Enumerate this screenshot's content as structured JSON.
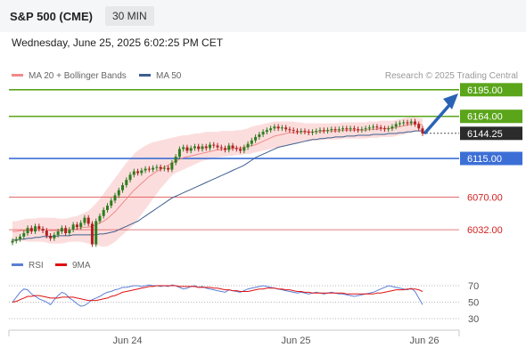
{
  "header": {
    "symbol": "S&P 500 (CME)",
    "timeframe": "30 MIN"
  },
  "datetime": "Wednesday, June 25, 2025 6:02:25 PM CET",
  "legend": {
    "bb_label": "MA 20 + Bollinger Bands",
    "ma50_label": "MA 50",
    "bb_color": "#f08a8a",
    "ma50_color": "#3d5f8f"
  },
  "research_text": "Research © 2025 Trading Central",
  "levels": [
    {
      "value": "6195.00",
      "kind": "resistance",
      "color": "#5aa51a",
      "fill": "#5aa51a",
      "text_color": "#ffffff"
    },
    {
      "value": "6164.00",
      "kind": "resistance",
      "color": "#5aa51a",
      "fill": "#5aa51a",
      "text_color": "#ffffff"
    },
    {
      "value": "6144.25",
      "kind": "last",
      "color": "#333333",
      "fill": "#2b2b2b",
      "text_color": "#ffffff"
    },
    {
      "value": "6115.00",
      "kind": "pivot",
      "color": "#3c6fd6",
      "fill": "#3c6fd6",
      "text_color": "#ffffff"
    },
    {
      "value": "6070.00",
      "kind": "support",
      "color": "#e05555",
      "fill": "none",
      "text_color": "#d42020"
    },
    {
      "value": "6032.00",
      "kind": "support",
      "color": "#e05555",
      "fill": "none",
      "text_color": "#d42020"
    }
  ],
  "rsi": {
    "label": "RSI",
    "ma_label": "9MA",
    "rsi_color": "#5b7fd6",
    "ma_color": "#e01010",
    "ticks": [
      "70",
      "50",
      "30"
    ]
  },
  "x_ticks": [
    "Jun 24",
    "Jun 25",
    "Jun 26"
  ],
  "chart_data": {
    "type": "candlestick",
    "y_levels": [
      6195.0,
      6164.0,
      6144.25,
      6115.0,
      6070.0,
      6032.0
    ],
    "close_series": [
      6019,
      6021,
      6024,
      6028,
      6034,
      6030,
      6036,
      6033,
      6031,
      6025,
      6022,
      6026,
      6030,
      6034,
      6028,
      6032,
      6038,
      6035,
      6040,
      6046,
      6039,
      6015,
      6042,
      6048,
      6055,
      6060,
      6066,
      6072,
      6078,
      6084,
      6090,
      6096,
      6100,
      6098,
      6101,
      6103,
      6102,
      6104,
      6105,
      6103,
      6104,
      6102,
      6110,
      6117,
      6126,
      6128,
      6124,
      6127,
      6129,
      6126,
      6129,
      6127,
      6131,
      6130,
      6128,
      6127,
      6125,
      6130,
      6127,
      6126,
      6124,
      6128,
      6132,
      6136,
      6140,
      6143,
      6146,
      6148,
      6150,
      6152,
      6150,
      6151,
      6149,
      6148,
      6147,
      6146,
      6147,
      6146,
      6145,
      6146,
      6147,
      6148,
      6147,
      6148,
      6149,
      6148,
      6149,
      6150,
      6149,
      6150,
      6149,
      6148,
      6149,
      6150,
      6151,
      6152,
      6151,
      6150,
      6149,
      6150,
      6152,
      6155,
      6156,
      6157,
      6156,
      6158,
      6155,
      6150,
      6144
    ],
    "bb_mid": [
      6030,
      6030,
      6031,
      6031,
      6031,
      6032,
      6032,
      6032,
      6032,
      6032,
      6031,
      6031,
      6031,
      6031,
      6032,
      6032,
      6032,
      6033,
      6034,
      6035,
      6035,
      6036,
      6038,
      6040,
      6042,
      6045,
      6049,
      6053,
      6058,
      6063,
      6068,
      6073,
      6078,
      6082,
      6086,
      6090,
      6094,
      6097,
      6100,
      6102,
      6105,
      6107,
      6110,
      6112,
      6114,
      6116,
      6117,
      6118,
      6119,
      6120,
      6121,
      6122,
      6123,
      6124,
      6125,
      6125,
      6126,
      6126,
      6127,
      6127,
      6127,
      6128,
      6129,
      6130,
      6131,
      6133,
      6135,
      6137,
      6139,
      6141,
      6142,
      6143,
      6144,
      6145,
      6145,
      6145,
      6146,
      6146,
      6146,
      6146,
      6146,
      6146,
      6147,
      6147,
      6147,
      6147,
      6147,
      6148,
      6148,
      6148,
      6148,
      6148,
      6148,
      6148,
      6149,
      6149,
      6149,
      6150,
      6150,
      6150,
      6150,
      6151,
      6152,
      6153,
      6154,
      6155,
      6155,
      6155,
      6154
    ],
    "bb_upper": [
      6042,
      6042,
      6043,
      6044,
      6045,
      6045,
      6045,
      6046,
      6046,
      6046,
      6046,
      6046,
      6045,
      6045,
      6045,
      6046,
      6047,
      6048,
      6050,
      6052,
      6054,
      6058,
      6063,
      6068,
      6074,
      6080,
      6086,
      6092,
      6098,
      6104,
      6110,
      6115,
      6120,
      6124,
      6127,
      6130,
      6132,
      6134,
      6135,
      6136,
      6137,
      6138,
      6139,
      6140,
      6141,
      6142,
      6142,
      6143,
      6144,
      6144,
      6145,
      6146,
      6146,
      6146,
      6146,
      6147,
      6147,
      6147,
      6147,
      6148,
      6148,
      6149,
      6150,
      6152,
      6153,
      6154,
      6155,
      6156,
      6157,
      6158,
      6158,
      6158,
      6158,
      6158,
      6158,
      6157,
      6157,
      6156,
      6156,
      6156,
      6156,
      6156,
      6156,
      6156,
      6156,
      6156,
      6156,
      6157,
      6157,
      6157,
      6157,
      6157,
      6157,
      6157,
      6158,
      6158,
      6158,
      6159,
      6159,
      6159,
      6159,
      6160,
      6161,
      6162,
      6163,
      6163,
      6163,
      6162,
      6162
    ],
    "bb_lower": [
      6018,
      6018,
      6019,
      6019,
      6018,
      6018,
      6018,
      6018,
      6018,
      6017,
      6016,
      6016,
      6016,
      6016,
      6017,
      6018,
      6018,
      6018,
      6018,
      6017,
      6016,
      6015,
      6014,
      6013,
      6012,
      6013,
      6015,
      6018,
      6022,
      6026,
      6030,
      6034,
      6038,
      6044,
      6050,
      6056,
      6062,
      6068,
      6074,
      6080,
      6085,
      6090,
      6095,
      6098,
      6100,
      6102,
      6104,
      6106,
      6108,
      6110,
      6112,
      6113,
      6114,
      6115,
      6116,
      6117,
      6117,
      6118,
      6118,
      6119,
      6119,
      6120,
      6120,
      6121,
      6122,
      6123,
      6124,
      6125,
      6126,
      6127,
      6128,
      6129,
      6130,
      6131,
      6132,
      6133,
      6134,
      6135,
      6135,
      6136,
      6136,
      6136,
      6137,
      6137,
      6137,
      6137,
      6137,
      6138,
      6138,
      6138,
      6138,
      6138,
      6138,
      6138,
      6139,
      6139,
      6139,
      6140,
      6140,
      6140,
      6140,
      6141,
      6142,
      6143,
      6144,
      6145,
      6146,
      6147,
      6146
    ],
    "ma50": [
      6020,
      6020,
      6021,
      6021,
      6022,
      6022,
      6023,
      6023,
      6024,
      6024,
      6024,
      6024,
      6025,
      6025,
      6025,
      6025,
      6026,
      6026,
      6026,
      6026,
      6026,
      6026,
      6026,
      6027,
      6027,
      6028,
      6029,
      6030,
      6032,
      6034,
      6036,
      6038,
      6040,
      6042,
      6045,
      6048,
      6051,
      6054,
      6057,
      6060,
      6063,
      6066,
      6069,
      6071,
      6073,
      6075,
      6077,
      6079,
      6081,
      6083,
      6085,
      6087,
      6089,
      6091,
      6093,
      6095,
      6097,
      6099,
      6101,
      6103,
      6105,
      6107,
      6110,
      6113,
      6116,
      6118,
      6120,
      6122,
      6124,
      6126,
      6128,
      6129,
      6130,
      6131,
      6132,
      6133,
      6134,
      6135,
      6136,
      6137,
      6137,
      6138,
      6138,
      6139,
      6139,
      6140,
      6140,
      6140,
      6141,
      6141,
      6141,
      6142,
      6142,
      6142,
      6142,
      6143,
      6143,
      6143,
      6143,
      6144,
      6144,
      6144,
      6145,
      6145,
      6146,
      6146,
      6147,
      6147,
      6147
    ],
    "rsi": [
      50,
      56,
      62,
      66,
      65,
      60,
      57,
      54,
      52,
      50,
      47,
      53,
      58,
      62,
      60,
      55,
      52,
      48,
      45,
      46,
      49,
      53,
      55,
      57,
      60,
      62,
      63,
      65,
      66,
      68,
      68,
      69,
      70,
      70,
      69,
      70,
      71,
      70,
      70,
      69,
      70,
      69,
      71,
      70,
      68,
      66,
      67,
      69,
      70,
      68,
      69,
      67,
      66,
      65,
      64,
      63,
      62,
      65,
      64,
      63,
      62,
      64,
      66,
      67,
      68,
      69,
      70,
      69,
      68,
      67,
      66,
      65,
      64,
      63,
      62,
      61,
      62,
      61,
      60,
      61,
      62,
      61,
      60,
      61,
      62,
      61,
      60,
      60,
      59,
      58,
      57,
      58,
      59,
      60,
      61,
      62,
      64,
      66,
      68,
      70,
      69,
      68,
      67,
      66,
      65,
      67,
      63,
      55,
      47
    ],
    "rsi_ma": [
      50,
      51,
      53,
      55,
      57,
      57,
      58,
      58,
      57,
      56,
      55,
      55,
      55,
      56,
      56,
      56,
      56,
      55,
      54,
      53,
      52,
      52,
      52,
      53,
      54,
      55,
      57,
      58,
      60,
      62,
      63,
      64,
      65,
      66,
      67,
      68,
      69,
      69,
      70,
      70,
      70,
      70,
      70,
      70,
      69,
      69,
      69,
      69,
      69,
      68,
      68,
      68,
      68,
      67,
      67,
      66,
      65,
      65,
      64,
      64,
      63,
      63,
      63,
      64,
      65,
      66,
      66,
      67,
      67,
      67,
      66,
      66,
      65,
      65,
      64,
      63,
      63,
      62,
      62,
      61,
      61,
      61,
      61,
      61,
      61,
      61,
      61,
      61,
      60,
      60,
      60,
      60,
      60,
      60,
      60,
      60,
      61,
      61,
      62,
      63,
      64,
      65,
      65,
      65,
      66,
      66,
      66,
      65,
      63
    ],
    "x_ticks": [
      "Jun 24",
      "Jun 25",
      "Jun 26"
    ],
    "rsi_range": [
      30,
      70
    ]
  }
}
